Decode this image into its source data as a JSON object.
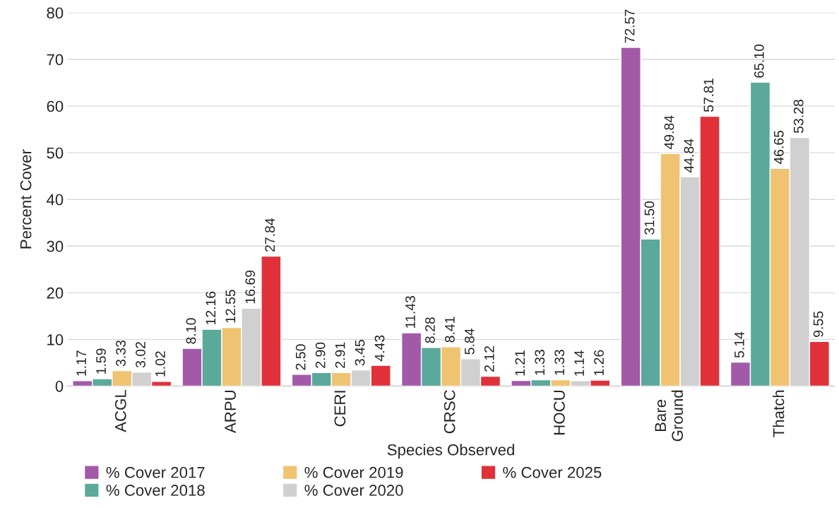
{
  "chart_data": {
    "type": "bar",
    "xlabel": "Species Observed",
    "ylabel": "Percent Cover",
    "categories": [
      "ACGL",
      "ARPU",
      "CERI",
      "CRSC",
      "HOCU",
      "Bare Ground",
      "Thatch"
    ],
    "series": [
      {
        "name": "% Cover 2017",
        "color": "#a25aa8",
        "values": [
          1.17,
          8.1,
          2.5,
          11.43,
          1.21,
          72.57,
          5.14
        ],
        "value_labels": [
          "1.17",
          "8.10",
          "2.50",
          "11.43",
          "1.21",
          "72.57",
          "5.14"
        ]
      },
      {
        "name": "% Cover 2018",
        "color": "#5aa99b",
        "values": [
          1.59,
          12.16,
          2.9,
          8.28,
          1.33,
          31.5,
          65.1
        ],
        "value_labels": [
          "1.59",
          "12.16",
          "2.90",
          "8.28",
          "1.33",
          "31.50",
          "65.10"
        ]
      },
      {
        "name": "% Cover 2019",
        "color": "#f0c373",
        "values": [
          3.33,
          12.55,
          2.91,
          8.41,
          1.33,
          49.84,
          46.65
        ],
        "value_labels": [
          "3.33",
          "12.55",
          "2.91",
          "8.41",
          "1.33",
          "49.84",
          "46.65"
        ]
      },
      {
        "name": "% Cover 2020",
        "color": "#d0d0d0",
        "values": [
          3.02,
          16.69,
          3.45,
          5.84,
          1.14,
          44.84,
          53.28
        ],
        "value_labels": [
          "3.02",
          "16.69",
          "3.45",
          "5.84",
          "1.14",
          "44.84",
          "53.28"
        ]
      },
      {
        "name": "% Cover 2025",
        "color": "#e0313a",
        "values": [
          1.02,
          27.84,
          4.43,
          2.12,
          1.26,
          57.81,
          9.55
        ],
        "value_labels": [
          "1.02",
          "27.84",
          "4.43",
          "2.12",
          "1.26",
          "57.81",
          "9.55"
        ]
      }
    ],
    "ylim": [
      0,
      80
    ],
    "yticks": [
      0,
      10,
      20,
      30,
      40,
      50,
      60,
      70,
      80
    ],
    "grid": "y",
    "legend": "bottom"
  }
}
